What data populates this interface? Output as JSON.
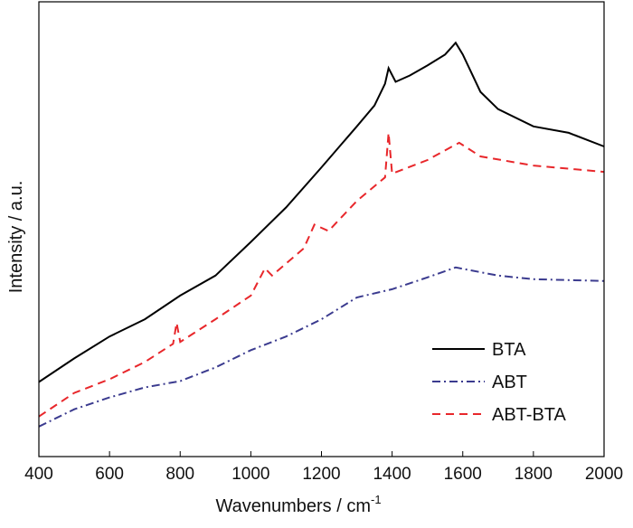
{
  "chart_data": {
    "type": "line",
    "title": "",
    "xlabel": "Wavenumbers / cm",
    "xlabel_superscript": "-1",
    "ylabel": "Intensity / a.u.",
    "xlim": [
      400,
      2000
    ],
    "ylim": [
      0,
      100
    ],
    "y_ticks_shown": false,
    "grid": false,
    "legend_placement": "bottom-right",
    "x_ticks": [
      "400",
      "600",
      "800",
      "1000",
      "1200",
      "1400",
      "1600",
      "1800",
      "2000"
    ],
    "series": [
      {
        "name": "BTA",
        "color": "#000000",
        "style": "solid",
        "x": [
          400,
          500,
          600,
          700,
          800,
          900,
          1000,
          1100,
          1200,
          1300,
          1350,
          1380,
          1390,
          1410,
          1450,
          1500,
          1550,
          1580,
          1600,
          1650,
          1700,
          1800,
          1900,
          2000
        ],
        "y": [
          16.4,
          21.6,
          26.4,
          30.2,
          35.4,
          39.8,
          47.2,
          54.8,
          63.6,
          72.6,
          77.2,
          82,
          85.4,
          82.4,
          83.8,
          86,
          88.4,
          91,
          88.4,
          80.2,
          76.4,
          72.6,
          71.2,
          68.2
        ]
      },
      {
        "name": "ABT",
        "color": "#3b3b8f",
        "style": "dash-dot",
        "x": [
          400,
          500,
          600,
          700,
          800,
          900,
          1000,
          1100,
          1200,
          1300,
          1400,
          1500,
          1580,
          1700,
          1800,
          2000
        ],
        "y": [
          6.6,
          10.4,
          13,
          15.2,
          16.6,
          19.6,
          23.4,
          26.4,
          30.2,
          35,
          36.8,
          39.4,
          41.6,
          39.8,
          39,
          38.6
        ]
      },
      {
        "name": "ABT-BTA",
        "color": "#e8272b",
        "style": "dashed",
        "x": [
          400,
          500,
          600,
          700,
          780,
          790,
          800,
          900,
          1000,
          1040,
          1060,
          1150,
          1180,
          1220,
          1300,
          1380,
          1390,
          1400,
          1500,
          1570,
          1590,
          1650,
          1800,
          2000
        ],
        "y": [
          8.8,
          14,
          17,
          20.8,
          24.8,
          29.4,
          25.2,
          30.2,
          35.4,
          41.4,
          39.8,
          45.8,
          51,
          49.6,
          56.2,
          61.4,
          71.2,
          62.2,
          65.2,
          68.2,
          69,
          66,
          64,
          62.6
        ]
      }
    ]
  }
}
